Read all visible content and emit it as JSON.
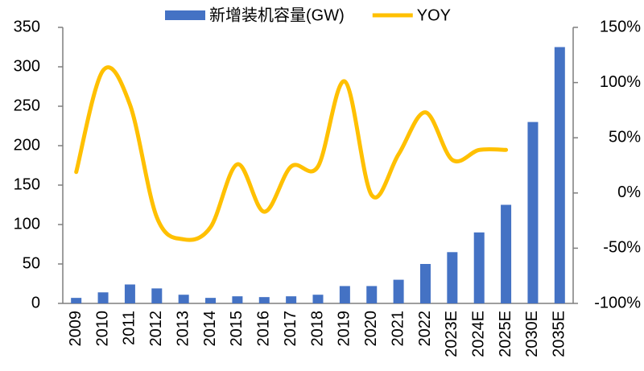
{
  "chart_data": {
    "type": "bar_line",
    "categories": [
      "2009",
      "2010",
      "2011",
      "2012",
      "2013",
      "2014",
      "2015",
      "2016",
      "2017",
      "2018",
      "2019",
      "2020",
      "2021",
      "2022",
      "2023E",
      "2024E",
      "2025E",
      "2030E",
      "2035E"
    ],
    "series": [
      {
        "name": "新增装机容量(GW)",
        "type": "bar",
        "color": "#4472c4",
        "values": [
          7,
          14,
          24,
          19,
          11,
          7,
          9,
          8,
          9,
          11,
          22,
          22,
          30,
          50,
          65,
          90,
          125,
          230,
          325
        ]
      },
      {
        "name": "YOY",
        "type": "line",
        "axis": "y2",
        "color": "#ffc000",
        "smooth": true,
        "values": [
          19,
          111,
          80,
          -22,
          -42,
          -31,
          26,
          -17,
          24,
          24,
          101,
          -2,
          35,
          73,
          30,
          39,
          39,
          null,
          null
        ]
      }
    ],
    "ylim": [
      0,
      350
    ],
    "yticks": [
      0,
      50,
      100,
      150,
      200,
      250,
      300,
      350
    ],
    "y2lim": [
      -100,
      150
    ],
    "y2ticks": [
      {
        "value": -100,
        "label": "-100%"
      },
      {
        "value": -50,
        "label": "-50%"
      },
      {
        "value": 0,
        "label": "0%"
      },
      {
        "value": 50,
        "label": "50%"
      },
      {
        "value": 100,
        "label": "100%"
      },
      {
        "value": 150,
        "label": "150%"
      }
    ],
    "legend": "top"
  }
}
